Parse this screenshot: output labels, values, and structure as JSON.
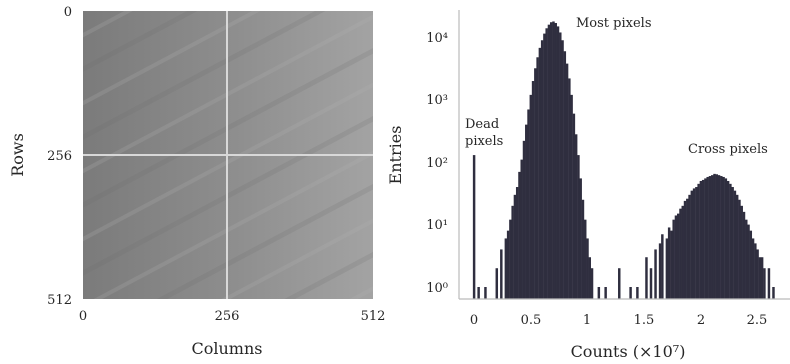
{
  "image_panel": {
    "xlabel": "Columns",
    "ylabel": "Rows",
    "xticks": [
      "0",
      "256",
      "512"
    ],
    "yticks": [
      "0",
      "256",
      "512"
    ],
    "colors": {
      "pixel_background": "#8e8e8e",
      "cross_line": "#d8d8d8"
    }
  },
  "chart_data": {
    "type": "bar",
    "title": "",
    "xlabel": "Counts (×10⁷)",
    "ylabel": "Entries",
    "xlim": [
      -0.13,
      2.78
    ],
    "ylim": [
      0.5,
      40000
    ],
    "yscale": "log",
    "xticks": [
      "0",
      "0.5",
      "1",
      "1.5",
      "2",
      "2.5"
    ],
    "yticks": [
      "10⁰",
      "10¹",
      "10²",
      "10³",
      "10⁴"
    ],
    "grid": false,
    "bar_color": "#2f2e3f",
    "bin_width": 0.02,
    "annotations": [
      "Dead pixels",
      "Most pixels",
      "Cross pixels"
    ],
    "bins": [
      [
        0.0,
        130
      ],
      [
        0.04,
        1
      ],
      [
        0.1,
        1
      ],
      [
        0.2,
        2
      ],
      [
        0.24,
        4
      ],
      [
        0.28,
        6
      ],
      [
        0.3,
        8
      ],
      [
        0.32,
        12
      ],
      [
        0.34,
        20
      ],
      [
        0.36,
        30
      ],
      [
        0.38,
        40
      ],
      [
        0.4,
        70
      ],
      [
        0.42,
        110
      ],
      [
        0.44,
        220
      ],
      [
        0.46,
        400
      ],
      [
        0.48,
        700
      ],
      [
        0.5,
        1200
      ],
      [
        0.52,
        2000
      ],
      [
        0.54,
        3200
      ],
      [
        0.56,
        4800
      ],
      [
        0.58,
        6800
      ],
      [
        0.6,
        9000
      ],
      [
        0.62,
        11500
      ],
      [
        0.64,
        14000
      ],
      [
        0.66,
        16000
      ],
      [
        0.68,
        17500
      ],
      [
        0.7,
        18000
      ],
      [
        0.72,
        17000
      ],
      [
        0.74,
        15000
      ],
      [
        0.76,
        12000
      ],
      [
        0.78,
        9000
      ],
      [
        0.8,
        6000
      ],
      [
        0.82,
        3800
      ],
      [
        0.84,
        2200
      ],
      [
        0.86,
        1200
      ],
      [
        0.88,
        600
      ],
      [
        0.9,
        280
      ],
      [
        0.92,
        130
      ],
      [
        0.94,
        55
      ],
      [
        0.96,
        25
      ],
      [
        0.98,
        12
      ],
      [
        1.0,
        6
      ],
      [
        1.02,
        3
      ],
      [
        1.04,
        2
      ],
      [
        1.1,
        1
      ],
      [
        1.16,
        1
      ],
      [
        1.28,
        2
      ],
      [
        1.38,
        1
      ],
      [
        1.44,
        1
      ],
      [
        1.52,
        3
      ],
      [
        1.56,
        2
      ],
      [
        1.6,
        4
      ],
      [
        1.64,
        5
      ],
      [
        1.66,
        7
      ],
      [
        1.7,
        6
      ],
      [
        1.72,
        9
      ],
      [
        1.74,
        8
      ],
      [
        1.76,
        12
      ],
      [
        1.78,
        14
      ],
      [
        1.8,
        15
      ],
      [
        1.82,
        18
      ],
      [
        1.84,
        20
      ],
      [
        1.86,
        24
      ],
      [
        1.88,
        26
      ],
      [
        1.9,
        30
      ],
      [
        1.92,
        35
      ],
      [
        1.94,
        38
      ],
      [
        1.96,
        40
      ],
      [
        1.98,
        45
      ],
      [
        2.0,
        50
      ],
      [
        2.02,
        52
      ],
      [
        2.04,
        55
      ],
      [
        2.06,
        58
      ],
      [
        2.08,
        60
      ],
      [
        2.1,
        62
      ],
      [
        2.12,
        65
      ],
      [
        2.14,
        64
      ],
      [
        2.16,
        62
      ],
      [
        2.18,
        60
      ],
      [
        2.2,
        58
      ],
      [
        2.22,
        55
      ],
      [
        2.24,
        50
      ],
      [
        2.26,
        45
      ],
      [
        2.28,
        40
      ],
      [
        2.3,
        35
      ],
      [
        2.32,
        30
      ],
      [
        2.34,
        25
      ],
      [
        2.36,
        20
      ],
      [
        2.38,
        16
      ],
      [
        2.4,
        12
      ],
      [
        2.42,
        10
      ],
      [
        2.44,
        8
      ],
      [
        2.46,
        6
      ],
      [
        2.48,
        5
      ],
      [
        2.5,
        4
      ],
      [
        2.52,
        3
      ],
      [
        2.54,
        3
      ],
      [
        2.56,
        2
      ],
      [
        2.6,
        2
      ],
      [
        2.64,
        1
      ]
    ]
  }
}
